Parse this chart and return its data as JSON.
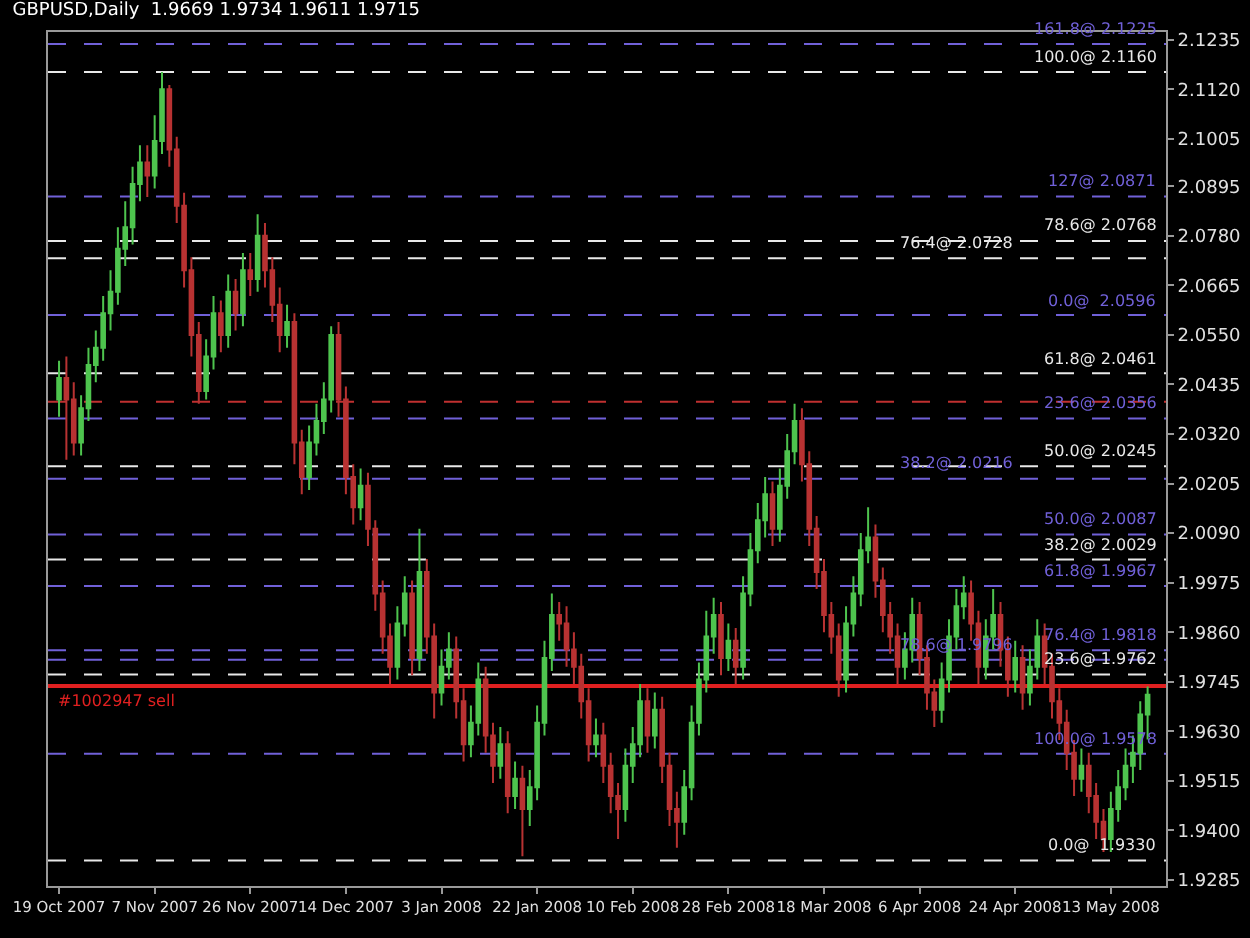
{
  "chart_data": {
    "type": "candlestick",
    "title": "GBPUSD,Daily  1.9669 1.9734 1.9611 1.9715",
    "categories": [
      "19 Oct 2007",
      null,
      null,
      null,
      null,
      null,
      null,
      null,
      null,
      null,
      null,
      null,
      null,
      "7 Nov 2007",
      null,
      null,
      null,
      null,
      null,
      null,
      null,
      null,
      null,
      null,
      null,
      null,
      "26 Nov 2007",
      null,
      null,
      null,
      null,
      null,
      null,
      null,
      null,
      null,
      null,
      null,
      null,
      "14 Dec 2007",
      null,
      null,
      null,
      null,
      null,
      null,
      null,
      null,
      null,
      null,
      null,
      null,
      "3 Jan 2008",
      null,
      null,
      null,
      null,
      null,
      null,
      null,
      null,
      null,
      null,
      null,
      null,
      "22 Jan 2008",
      null,
      null,
      null,
      null,
      null,
      null,
      null,
      null,
      null,
      null,
      null,
      null,
      "10 Feb 2008",
      null,
      null,
      null,
      null,
      null,
      null,
      null,
      null,
      null,
      null,
      null,
      null,
      "28 Feb 2008",
      null,
      null,
      null,
      null,
      null,
      null,
      null,
      null,
      null,
      null,
      null,
      null,
      "18 Mar 2008",
      null,
      null,
      null,
      null,
      null,
      null,
      null,
      null,
      null,
      null,
      null,
      null,
      "6 Apr 2008",
      null,
      null,
      null,
      null,
      null,
      null,
      null,
      null,
      null,
      null,
      null,
      null,
      "24 Apr 2008",
      null,
      null,
      null,
      null,
      null,
      null,
      null,
      null,
      null,
      null,
      null,
      null,
      "13 May 2008",
      null,
      null,
      null,
      null,
      null
    ],
    "ohlc": [
      [
        2.04,
        2.049,
        2.036,
        2.045
      ],
      [
        2.045,
        2.05,
        2.026,
        2.04
      ],
      [
        2.04,
        2.044,
        2.027,
        2.03
      ],
      [
        2.03,
        2.041,
        2.027,
        2.038
      ],
      [
        2.038,
        2.052,
        2.035,
        2.048
      ],
      [
        2.048,
        2.056,
        2.044,
        2.052
      ],
      [
        2.052,
        2.064,
        2.049,
        2.06
      ],
      [
        2.06,
        2.07,
        2.056,
        2.065
      ],
      [
        2.065,
        2.08,
        2.062,
        2.075
      ],
      [
        2.075,
        2.086,
        2.071,
        2.08
      ],
      [
        2.08,
        2.094,
        2.076,
        2.09
      ],
      [
        2.09,
        2.099,
        2.086,
        2.095
      ],
      [
        2.095,
        2.099,
        2.087,
        2.092
      ],
      [
        2.092,
        2.106,
        2.089,
        2.1
      ],
      [
        2.1,
        2.116,
        2.097,
        2.112
      ],
      [
        2.112,
        2.113,
        2.094,
        2.098
      ],
      [
        2.098,
        2.101,
        2.081,
        2.085
      ],
      [
        2.085,
        2.088,
        2.066,
        2.07
      ],
      [
        2.07,
        2.073,
        2.05,
        2.055
      ],
      [
        2.055,
        2.058,
        2.039,
        2.042
      ],
      [
        2.042,
        2.054,
        2.04,
        2.05
      ],
      [
        2.05,
        2.064,
        2.047,
        2.06
      ],
      [
        2.06,
        2.063,
        2.051,
        2.055
      ],
      [
        2.055,
        2.069,
        2.052,
        2.065
      ],
      [
        2.065,
        2.068,
        2.056,
        2.06
      ],
      [
        2.06,
        2.074,
        2.057,
        2.07
      ],
      [
        2.07,
        2.074,
        2.064,
        2.068
      ],
      [
        2.068,
        2.083,
        2.065,
        2.078
      ],
      [
        2.078,
        2.081,
        2.066,
        2.07
      ],
      [
        2.07,
        2.073,
        2.058,
        2.062
      ],
      [
        2.062,
        2.066,
        2.051,
        2.055
      ],
      [
        2.055,
        2.062,
        2.052,
        2.058
      ],
      [
        2.058,
        2.06,
        2.025,
        2.03
      ],
      [
        2.03,
        2.033,
        2.018,
        2.022
      ],
      [
        2.022,
        2.034,
        2.019,
        2.03
      ],
      [
        2.03,
        2.039,
        2.027,
        2.035
      ],
      [
        2.035,
        2.044,
        2.032,
        2.04
      ],
      [
        2.04,
        2.057,
        2.037,
        2.055
      ],
      [
        2.055,
        2.058,
        2.036,
        2.04
      ],
      [
        2.04,
        2.043,
        2.018,
        2.022
      ],
      [
        2.022,
        2.025,
        2.011,
        2.015
      ],
      [
        2.015,
        2.024,
        2.012,
        2.02
      ],
      [
        2.02,
        2.023,
        2.006,
        2.01
      ],
      [
        2.01,
        2.012,
        1.991,
        1.995
      ],
      [
        1.995,
        1.998,
        1.981,
        1.985
      ],
      [
        1.985,
        1.988,
        1.974,
        1.978
      ],
      [
        1.978,
        1.992,
        1.975,
        1.988
      ],
      [
        1.988,
        1.999,
        1.985,
        1.995
      ],
      [
        1.995,
        1.998,
        1.976,
        1.98
      ],
      [
        1.98,
        2.01,
        1.977,
        2.0
      ],
      [
        2.0,
        2.003,
        1.981,
        1.985
      ],
      [
        1.985,
        1.988,
        1.966,
        1.972
      ],
      [
        1.972,
        1.982,
        1.969,
        1.978
      ],
      [
        1.978,
        1.986,
        1.975,
        1.982
      ],
      [
        1.982,
        1.985,
        1.966,
        1.97
      ],
      [
        1.97,
        1.973,
        1.956,
        1.96
      ],
      [
        1.96,
        1.969,
        1.957,
        1.965
      ],
      [
        1.965,
        1.979,
        1.962,
        1.975
      ],
      [
        1.975,
        1.978,
        1.958,
        1.962
      ],
      [
        1.962,
        1.965,
        1.951,
        1.955
      ],
      [
        1.955,
        1.964,
        1.952,
        1.96
      ],
      [
        1.96,
        1.963,
        1.944,
        1.948
      ],
      [
        1.948,
        1.956,
        1.945,
        1.952
      ],
      [
        1.952,
        1.955,
        1.934,
        1.945
      ],
      [
        1.945,
        1.954,
        1.941,
        1.95
      ],
      [
        1.95,
        1.969,
        1.947,
        1.965
      ],
      [
        1.965,
        1.984,
        1.962,
        1.98
      ],
      [
        1.98,
        1.995,
        1.977,
        1.99
      ],
      [
        1.99,
        1.993,
        1.984,
        1.988
      ],
      [
        1.988,
        1.992,
        1.978,
        1.982
      ],
      [
        1.982,
        1.986,
        1.974,
        1.978
      ],
      [
        1.978,
        1.981,
        1.966,
        1.97
      ],
      [
        1.97,
        1.973,
        1.956,
        1.96
      ],
      [
        1.96,
        1.966,
        1.957,
        1.962
      ],
      [
        1.962,
        1.965,
        1.951,
        1.955
      ],
      [
        1.955,
        1.958,
        1.944,
        1.948
      ],
      [
        1.948,
        1.951,
        1.938,
        1.945
      ],
      [
        1.945,
        1.959,
        1.942,
        1.955
      ],
      [
        1.955,
        1.964,
        1.951,
        1.96
      ],
      [
        1.96,
        1.974,
        1.957,
        1.97
      ],
      [
        1.97,
        1.973,
        1.958,
        1.962
      ],
      [
        1.962,
        1.972,
        1.959,
        1.968
      ],
      [
        1.968,
        1.971,
        1.951,
        1.955
      ],
      [
        1.955,
        1.958,
        1.941,
        1.945
      ],
      [
        1.945,
        1.949,
        1.936,
        1.942
      ],
      [
        1.942,
        1.954,
        1.939,
        1.95
      ],
      [
        1.95,
        1.969,
        1.947,
        1.965
      ],
      [
        1.965,
        1.979,
        1.962,
        1.975
      ],
      [
        1.975,
        1.991,
        1.972,
        1.985
      ],
      [
        1.985,
        1.994,
        1.981,
        1.99
      ],
      [
        1.99,
        1.993,
        1.976,
        1.98
      ],
      [
        1.98,
        1.988,
        1.977,
        1.984
      ],
      [
        1.984,
        1.987,
        1.974,
        1.978
      ],
      [
        1.978,
        1.999,
        1.975,
        1.995
      ],
      [
        1.995,
        2.009,
        1.992,
        2.005
      ],
      [
        2.005,
        2.016,
        2.002,
        2.012
      ],
      [
        2.012,
        2.022,
        2.008,
        2.018
      ],
      [
        2.018,
        2.021,
        2.006,
        2.01
      ],
      [
        2.01,
        2.024,
        2.007,
        2.02
      ],
      [
        2.02,
        2.032,
        2.017,
        2.028
      ],
      [
        2.028,
        2.039,
        2.025,
        2.035
      ],
      [
        2.035,
        2.038,
        2.021,
        2.025
      ],
      [
        2.025,
        2.028,
        2.006,
        2.01
      ],
      [
        2.01,
        2.013,
        1.996,
        2.0
      ],
      [
        2.0,
        2.003,
        1.986,
        1.99
      ],
      [
        1.99,
        1.993,
        1.981,
        1.985
      ],
      [
        1.985,
        1.988,
        1.971,
        1.975
      ],
      [
        1.975,
        1.992,
        1.972,
        1.988
      ],
      [
        1.988,
        1.999,
        1.985,
        1.995
      ],
      [
        1.995,
        2.009,
        1.992,
        2.005
      ],
      [
        2.005,
        2.015,
        2.002,
        2.008
      ],
      [
        2.008,
        2.011,
        1.994,
        1.998
      ],
      [
        1.998,
        2.001,
        1.986,
        1.99
      ],
      [
        1.99,
        1.993,
        1.981,
        1.985
      ],
      [
        1.985,
        1.988,
        1.974,
        1.978
      ],
      [
        1.978,
        1.986,
        1.975,
        1.982
      ],
      [
        1.982,
        1.994,
        1.979,
        1.99
      ],
      [
        1.99,
        1.993,
        1.976,
        1.98
      ],
      [
        1.98,
        1.983,
        1.968,
        1.972
      ],
      [
        1.972,
        1.975,
        1.964,
        1.968
      ],
      [
        1.968,
        1.979,
        1.965,
        1.975
      ],
      [
        1.975,
        1.989,
        1.972,
        1.985
      ],
      [
        1.985,
        1.996,
        1.982,
        1.992
      ],
      [
        1.992,
        1.999,
        1.989,
        1.995
      ],
      [
        1.995,
        1.998,
        1.984,
        1.988
      ],
      [
        1.988,
        1.991,
        1.974,
        1.978
      ],
      [
        1.978,
        1.989,
        1.975,
        1.985
      ],
      [
        1.985,
        1.996,
        1.982,
        1.99
      ],
      [
        1.99,
        1.993,
        1.978,
        1.982
      ],
      [
        1.982,
        1.985,
        1.971,
        1.975
      ],
      [
        1.975,
        1.984,
        1.972,
        1.98
      ],
      [
        1.98,
        1.983,
        1.968,
        1.972
      ],
      [
        1.972,
        1.982,
        1.969,
        1.978
      ],
      [
        1.978,
        1.989,
        1.975,
        1.985
      ],
      [
        1.985,
        1.988,
        1.974,
        1.978
      ],
      [
        1.978,
        1.981,
        1.966,
        1.97
      ],
      [
        1.97,
        1.973,
        1.961,
        1.965
      ],
      [
        1.965,
        1.968,
        1.954,
        1.958
      ],
      [
        1.958,
        1.961,
        1.948,
        1.952
      ],
      [
        1.952,
        1.959,
        1.949,
        1.955
      ],
      [
        1.955,
        1.958,
        1.944,
        1.948
      ],
      [
        1.948,
        1.951,
        1.938,
        1.942
      ],
      [
        1.942,
        1.945,
        1.935,
        1.938
      ],
      [
        1.938,
        1.949,
        1.935,
        1.945
      ],
      [
        1.945,
        1.954,
        1.942,
        1.95
      ],
      [
        1.95,
        1.959,
        1.947,
        1.955
      ],
      [
        1.955,
        1.962,
        1.951,
        1.958
      ],
      [
        1.958,
        1.97,
        1.954,
        1.9669
      ],
      [
        1.9669,
        1.9734,
        1.9611,
        1.9715
      ]
    ],
    "colors": [
      "#4ec44e",
      "#b83232",
      "#b83232",
      "#4ec44e",
      "#4ec44e",
      "#4ec44e",
      "#4ec44e",
      "#4ec44e",
      "#4ec44e",
      "#4ec44e",
      "#4ec44e",
      "#4ec44e",
      "#b83232",
      "#4ec44e",
      "#4ec44e",
      "#b83232",
      "#b83232",
      "#b83232",
      "#b83232",
      "#b83232",
      "#4ec44e",
      "#4ec44e",
      "#b83232",
      "#4ec44e",
      "#b83232",
      "#4ec44e",
      "#b83232",
      "#4ec44e",
      "#b83232",
      "#b83232",
      "#b83232",
      "#4ec44e",
      "#b83232",
      "#b83232",
      "#4ec44e",
      "#4ec44e",
      "#4ec44e",
      "#4ec44e",
      "#b83232",
      "#b83232",
      "#b83232",
      "#4ec44e",
      "#b83232",
      "#b83232",
      "#b83232",
      "#b83232",
      "#4ec44e",
      "#4ec44e",
      "#b83232",
      "#4ec44e",
      "#b83232",
      "#b83232",
      "#4ec44e",
      "#4ec44e",
      "#b83232",
      "#b83232",
      "#4ec44e",
      "#4ec44e",
      "#b83232",
      "#b83232",
      "#4ec44e",
      "#b83232",
      "#4ec44e",
      "#b83232",
      "#4ec44e",
      "#4ec44e",
      "#4ec44e",
      "#4ec44e",
      "#b83232",
      "#b83232",
      "#b83232",
      "#b83232",
      "#b83232",
      "#4ec44e",
      "#b83232",
      "#b83232",
      "#b83232",
      "#4ec44e",
      "#4ec44e",
      "#4ec44e",
      "#b83232",
      "#4ec44e",
      "#b83232",
      "#b83232",
      "#b83232",
      "#4ec44e",
      "#4ec44e",
      "#4ec44e",
      "#4ec44e",
      "#4ec44e",
      "#b83232",
      "#4ec44e",
      "#b83232",
      "#4ec44e",
      "#4ec44e",
      "#4ec44e",
      "#4ec44e",
      "#b83232",
      "#4ec44e",
      "#4ec44e",
      "#4ec44e",
      "#b83232",
      "#b83232",
      "#b83232",
      "#b83232",
      "#b83232",
      "#b83232",
      "#4ec44e",
      "#4ec44e",
      "#4ec44e",
      "#4ec44e",
      "#b83232",
      "#b83232",
      "#b83232",
      "#b83232",
      "#4ec44e",
      "#4ec44e",
      "#b83232",
      "#b83232",
      "#b83232",
      "#4ec44e",
      "#4ec44e",
      "#4ec44e",
      "#4ec44e",
      "#b83232",
      "#b83232",
      "#4ec44e",
      "#4ec44e",
      "#b83232",
      "#b83232",
      "#4ec44e",
      "#b83232",
      "#4ec44e",
      "#4ec44e",
      "#b83232",
      "#b83232",
      "#b83232",
      "#b83232",
      "#b83232",
      "#4ec44e",
      "#b83232",
      "#b83232",
      "#b83232",
      "#4ec44e",
      "#4ec44e",
      "#4ec44e",
      "#4ec44e",
      "#4ec44e",
      "#4ec44e"
    ],
    "ylim": [
      1.9271,
      2.1253
    ],
    "yticks": [
      1.9285,
      {
        "value": 1.94,
        "label": "1.9400"
      },
      1.9515,
      {
        "value": 1.963,
        "label": "1.9630"
      },
      1.9745,
      {
        "value": 1.986,
        "label": "1.9860"
      },
      1.9975,
      {
        "value": 2.009,
        "label": "2.0090"
      },
      2.0205,
      {
        "value": 2.032,
        "label": "2.0320"
      },
      2.0435,
      {
        "value": 2.055,
        "label": "2.0550"
      },
      2.0665,
      {
        "value": 2.078,
        "label": "2.0780"
      },
      2.0895,
      2.1005,
      {
        "value": 2.112,
        "label": "2.1120"
      },
      2.1235
    ],
    "ref_lines": [
      {
        "axis": "y",
        "value": 2.1225,
        "label": "161.8@ 2.1225",
        "color": "#7060d8",
        "line_style": "dashed"
      },
      {
        "axis": "y",
        "value": 2.116,
        "label": "100.0@ 2.1160",
        "color": "#e8e8e8",
        "line_style": "dashed"
      },
      {
        "axis": "y",
        "value": 2.0871,
        "label": "127@ 2.0871",
        "color": "#7060d8",
        "line_style": "dashed"
      },
      {
        "axis": "y",
        "value": 2.0768,
        "label": "78.6@ 2.0768",
        "color": "#e8e8e8",
        "line_style": "dashed"
      },
      {
        "axis": "y",
        "value": 2.0728,
        "label": "76.4@ 2.0728",
        "color": "#e8e8e8",
        "line_style": "dashed"
      },
      {
        "axis": "y",
        "value": 2.0596,
        "label": "0.0@  2.0596",
        "color": "#7060d8",
        "line_style": "dashed"
      },
      {
        "axis": "y",
        "value": 2.0461,
        "label": "61.8@ 2.0461",
        "color": "#e8e8e8",
        "line_style": "dashed"
      },
      {
        "axis": "y",
        "value": 2.0356,
        "label": "23.6@ 2.0356",
        "color": "#7060d8",
        "line_style": "dashed"
      },
      {
        "axis": "y",
        "value": 2.0245,
        "label": "50.0@ 2.0245",
        "color": "#e8e8e8",
        "line_style": "dashed"
      },
      {
        "axis": "y",
        "value": 2.0216,
        "label": "38.2@ 2.0216",
        "color": "#7060d8",
        "line_style": "dashed"
      },
      {
        "axis": "y",
        "value": 2.0087,
        "label": "50.0@ 2.0087",
        "color": "#7060d8",
        "line_style": "dashed"
      },
      {
        "axis": "y",
        "value": 2.0029,
        "label": "38.2@ 2.0029",
        "color": "#e8e8e8",
        "line_style": "dashed"
      },
      {
        "axis": "y",
        "value": 1.9967,
        "label": "61.8@ 1.9967",
        "color": "#7060d8",
        "line_style": "dashed"
      },
      {
        "axis": "y",
        "value": 1.9818,
        "label": "76.4@ 1.9818",
        "color": "#7060d8",
        "line_style": "dashed"
      },
      {
        "axis": "y",
        "value": 1.9796,
        "label": "78.6@ 1.9796",
        "color": "#7060d8",
        "line_style": "dashed"
      },
      {
        "axis": "y",
        "value": 1.9762,
        "label": "23.6@ 1.9762",
        "color": "#e8e8e8",
        "line_style": "dashed"
      },
      {
        "axis": "y",
        "value": 1.9578,
        "label": "100.0@ 1.9578",
        "color": "#7060d8",
        "line_style": "dashed"
      },
      {
        "axis": "y",
        "value": 1.933,
        "label": "0.0@  1.9330",
        "color": "#e8e8e8",
        "line_style": "dashed"
      },
      {
        "axis": "y",
        "value": 2.0395,
        "color": "#c03030",
        "line_style": "dashed"
      },
      {
        "axis": "y",
        "value": 1.9735,
        "label": "#1002947 sell",
        "color": "#e02020",
        "line_style": "solid"
      }
    ],
    "grid": false
  }
}
